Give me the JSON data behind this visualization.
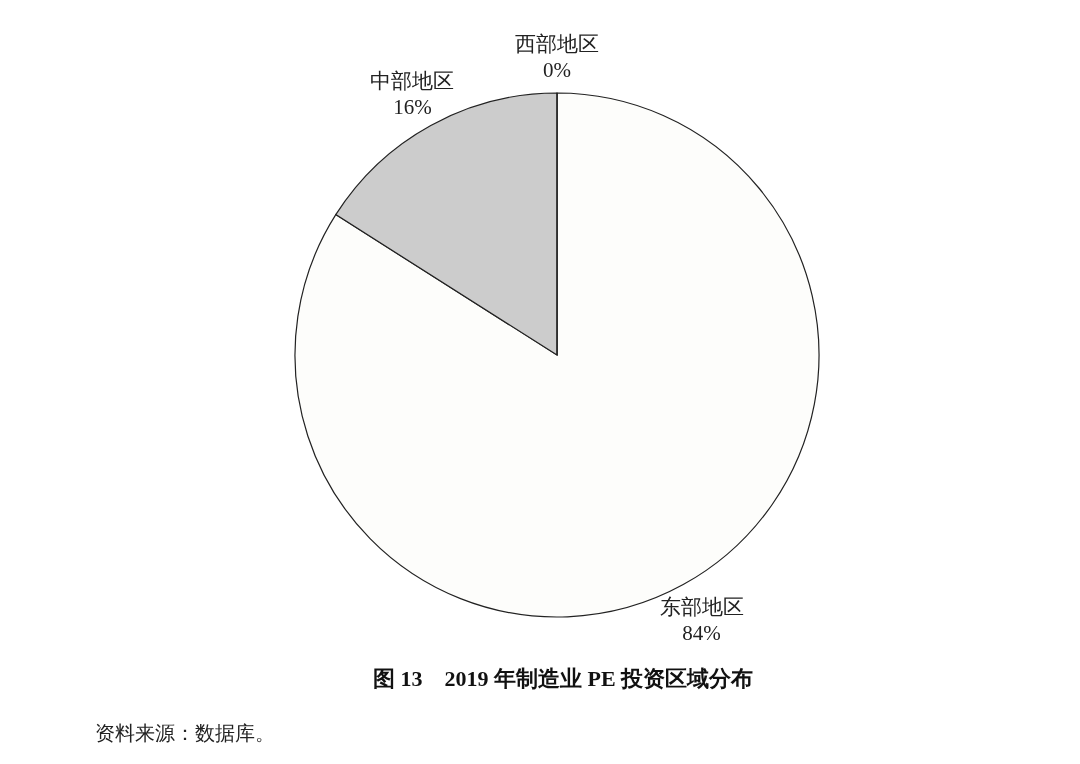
{
  "chart_data": {
    "type": "pie",
    "title": "图 13　2019 年制造业 PE 投资区域分布",
    "categories": [
      "东部地区",
      "中部地区",
      "西部地区"
    ],
    "values": [
      84,
      16,
      0
    ],
    "value_labels": [
      "84%",
      "16%",
      "0%"
    ],
    "colors": [
      "#fdfdfb",
      "#cccccc",
      "#ffffff"
    ],
    "annotations": [
      "资料来源：数据库。"
    ]
  }
}
